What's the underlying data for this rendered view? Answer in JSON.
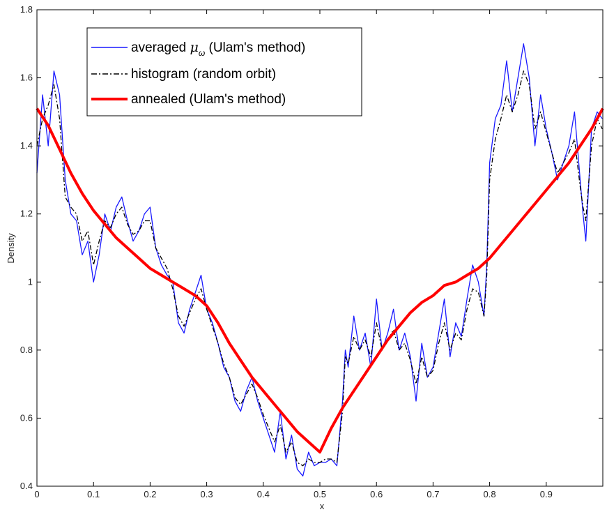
{
  "chart_data": {
    "type": "line",
    "title": "",
    "xlabel": "x",
    "ylabel": "Density",
    "xlim": [
      0,
      1
    ],
    "ylim": [
      0.4,
      1.8
    ],
    "grid": false,
    "legend_position": "top-left",
    "x_ticks": [
      "0",
      "0.1",
      "0.2",
      "0.3",
      "0.4",
      "0.5",
      "0.6",
      "0.7",
      "0.8",
      "0.9"
    ],
    "y_ticks": [
      "0.4",
      "0.6",
      "0.8",
      "1",
      "1.2",
      "1.4",
      "1.6",
      "1.8"
    ],
    "series": [
      {
        "name": "averaged μω (Ulam's method)",
        "legend_main": "averaged ",
        "legend_mu": "μ",
        "legend_sub": "ω",
        "legend_tail": " (Ulam's method)",
        "color": "#1a1aff",
        "style": "solid",
        "x": [
          0.0,
          0.01,
          0.02,
          0.03,
          0.04,
          0.05,
          0.06,
          0.07,
          0.08,
          0.09,
          0.1,
          0.11,
          0.12,
          0.13,
          0.14,
          0.15,
          0.16,
          0.17,
          0.18,
          0.19,
          0.2,
          0.21,
          0.22,
          0.23,
          0.24,
          0.25,
          0.26,
          0.27,
          0.28,
          0.29,
          0.3,
          0.31,
          0.32,
          0.33,
          0.34,
          0.35,
          0.36,
          0.37,
          0.38,
          0.39,
          0.4,
          0.41,
          0.42,
          0.43,
          0.44,
          0.45,
          0.46,
          0.47,
          0.48,
          0.49,
          0.5,
          0.51,
          0.52,
          0.53,
          0.54,
          0.545,
          0.55,
          0.56,
          0.57,
          0.58,
          0.59,
          0.6,
          0.61,
          0.62,
          0.63,
          0.64,
          0.65,
          0.66,
          0.67,
          0.68,
          0.69,
          0.7,
          0.71,
          0.72,
          0.73,
          0.74,
          0.75,
          0.76,
          0.77,
          0.78,
          0.79,
          0.795,
          0.8,
          0.81,
          0.82,
          0.83,
          0.84,
          0.85,
          0.86,
          0.87,
          0.88,
          0.89,
          0.9,
          0.91,
          0.92,
          0.93,
          0.94,
          0.95,
          0.96,
          0.965,
          0.97,
          0.98,
          0.99,
          0.999
        ],
        "y": [
          1.32,
          1.55,
          1.4,
          1.62,
          1.55,
          1.3,
          1.2,
          1.18,
          1.08,
          1.12,
          1.0,
          1.08,
          1.2,
          1.15,
          1.22,
          1.25,
          1.18,
          1.12,
          1.15,
          1.2,
          1.22,
          1.1,
          1.05,
          1.02,
          1.0,
          0.88,
          0.85,
          0.92,
          0.97,
          1.02,
          0.92,
          0.88,
          0.82,
          0.75,
          0.72,
          0.65,
          0.62,
          0.68,
          0.72,
          0.65,
          0.6,
          0.55,
          0.5,
          0.62,
          0.48,
          0.55,
          0.45,
          0.43,
          0.5,
          0.46,
          0.47,
          0.47,
          0.48,
          0.46,
          0.65,
          0.8,
          0.75,
          0.9,
          0.8,
          0.85,
          0.75,
          0.95,
          0.8,
          0.85,
          0.92,
          0.8,
          0.85,
          0.78,
          0.65,
          0.82,
          0.72,
          0.75,
          0.85,
          0.95,
          0.78,
          0.88,
          0.84,
          0.95,
          1.05,
          1.0,
          0.9,
          1.05,
          1.35,
          1.48,
          1.52,
          1.65,
          1.5,
          1.6,
          1.7,
          1.6,
          1.4,
          1.55,
          1.45,
          1.38,
          1.3,
          1.35,
          1.4,
          1.5,
          1.3,
          1.2,
          1.12,
          1.45,
          1.5,
          1.48
        ]
      },
      {
        "name": "histogram (random orbit)",
        "color": "#000000",
        "style": "dashdot",
        "x": [
          0.0,
          0.01,
          0.02,
          0.03,
          0.04,
          0.05,
          0.06,
          0.07,
          0.08,
          0.09,
          0.1,
          0.11,
          0.12,
          0.13,
          0.14,
          0.15,
          0.16,
          0.17,
          0.18,
          0.19,
          0.2,
          0.21,
          0.22,
          0.23,
          0.24,
          0.25,
          0.26,
          0.27,
          0.28,
          0.29,
          0.3,
          0.31,
          0.32,
          0.33,
          0.34,
          0.35,
          0.36,
          0.37,
          0.38,
          0.39,
          0.4,
          0.41,
          0.42,
          0.43,
          0.44,
          0.45,
          0.46,
          0.47,
          0.48,
          0.49,
          0.5,
          0.51,
          0.52,
          0.53,
          0.54,
          0.545,
          0.55,
          0.56,
          0.57,
          0.58,
          0.59,
          0.6,
          0.61,
          0.62,
          0.63,
          0.64,
          0.65,
          0.66,
          0.67,
          0.68,
          0.69,
          0.7,
          0.71,
          0.72,
          0.73,
          0.74,
          0.75,
          0.76,
          0.77,
          0.78,
          0.79,
          0.795,
          0.8,
          0.81,
          0.82,
          0.83,
          0.84,
          0.85,
          0.86,
          0.87,
          0.88,
          0.89,
          0.9,
          0.91,
          0.92,
          0.93,
          0.94,
          0.95,
          0.96,
          0.965,
          0.97,
          0.98,
          0.99,
          0.999
        ],
        "y": [
          1.4,
          1.48,
          1.52,
          1.58,
          1.48,
          1.25,
          1.22,
          1.2,
          1.12,
          1.15,
          1.05,
          1.12,
          1.18,
          1.16,
          1.2,
          1.22,
          1.17,
          1.14,
          1.15,
          1.18,
          1.18,
          1.1,
          1.07,
          1.04,
          0.98,
          0.9,
          0.87,
          0.91,
          0.95,
          0.98,
          0.92,
          0.87,
          0.82,
          0.76,
          0.72,
          0.66,
          0.64,
          0.67,
          0.7,
          0.66,
          0.61,
          0.57,
          0.53,
          0.58,
          0.5,
          0.53,
          0.47,
          0.46,
          0.48,
          0.47,
          0.47,
          0.48,
          0.48,
          0.47,
          0.62,
          0.78,
          0.76,
          0.84,
          0.8,
          0.83,
          0.78,
          0.88,
          0.8,
          0.83,
          0.86,
          0.8,
          0.82,
          0.77,
          0.7,
          0.78,
          0.72,
          0.74,
          0.82,
          0.88,
          0.8,
          0.85,
          0.83,
          0.92,
          0.98,
          0.97,
          0.9,
          1.02,
          1.3,
          1.42,
          1.48,
          1.55,
          1.5,
          1.55,
          1.62,
          1.58,
          1.45,
          1.5,
          1.44,
          1.38,
          1.32,
          1.35,
          1.38,
          1.42,
          1.28,
          1.22,
          1.18,
          1.4,
          1.48,
          1.45
        ]
      },
      {
        "name": "annealed (Ulam's method)",
        "color": "#ff0000",
        "style": "thick",
        "x": [
          0.0,
          0.02,
          0.04,
          0.06,
          0.08,
          0.1,
          0.12,
          0.14,
          0.16,
          0.18,
          0.2,
          0.22,
          0.24,
          0.26,
          0.28,
          0.3,
          0.32,
          0.34,
          0.36,
          0.38,
          0.4,
          0.42,
          0.44,
          0.46,
          0.48,
          0.5,
          0.52,
          0.54,
          0.56,
          0.58,
          0.6,
          0.62,
          0.64,
          0.66,
          0.68,
          0.7,
          0.72,
          0.74,
          0.76,
          0.78,
          0.8,
          0.82,
          0.84,
          0.86,
          0.88,
          0.9,
          0.92,
          0.94,
          0.96,
          0.98,
          1.0
        ],
        "y": [
          1.51,
          1.46,
          1.39,
          1.32,
          1.26,
          1.21,
          1.17,
          1.13,
          1.1,
          1.07,
          1.04,
          1.02,
          1.0,
          0.98,
          0.96,
          0.93,
          0.88,
          0.82,
          0.77,
          0.72,
          0.68,
          0.64,
          0.6,
          0.56,
          0.53,
          0.5,
          0.57,
          0.63,
          0.68,
          0.73,
          0.78,
          0.83,
          0.87,
          0.91,
          0.94,
          0.96,
          0.99,
          1.0,
          1.02,
          1.04,
          1.07,
          1.11,
          1.15,
          1.19,
          1.23,
          1.27,
          1.31,
          1.35,
          1.4,
          1.45,
          1.51
        ]
      }
    ]
  }
}
